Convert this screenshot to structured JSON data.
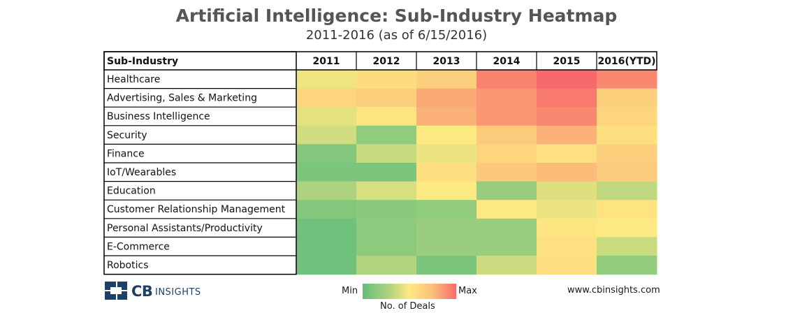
{
  "title": "Artificial Intelligence: Sub-Industry Heatmap",
  "subtitle": "2011-2016 (as of 6/15/2016)",
  "chart_data": {
    "type": "heatmap",
    "title": "Artificial Intelligence: Sub-Industry Heatmap",
    "row_header": "Sub-Industry",
    "columns": [
      "2011",
      "2012",
      "2013",
      "2014",
      "2015",
      "2016(YTD)"
    ],
    "rows": [
      "Healthcare",
      "Advertising, Sales & Marketing",
      "Business Intelligence",
      "Security",
      "Finance",
      "IoT/Wearables",
      "Education",
      "Customer Relationship Management",
      "Personal Assistants/Productivity",
      "E-Commerce",
      "Robotics"
    ],
    "values": [
      [
        0.45,
        0.55,
        0.6,
        0.9,
        1.0,
        0.88
      ],
      [
        0.58,
        0.6,
        0.75,
        0.82,
        0.93,
        0.6
      ],
      [
        0.42,
        0.52,
        0.72,
        0.82,
        0.88,
        0.58
      ],
      [
        0.35,
        0.15,
        0.5,
        0.62,
        0.72,
        0.54
      ],
      [
        0.1,
        0.32,
        0.44,
        0.58,
        0.53,
        0.6
      ],
      [
        0.08,
        0.08,
        0.54,
        0.63,
        0.68,
        0.62
      ],
      [
        0.24,
        0.38,
        0.5,
        0.17,
        0.4,
        0.3
      ],
      [
        0.1,
        0.13,
        0.15,
        0.5,
        0.44,
        0.52
      ],
      [
        0.04,
        0.14,
        0.18,
        0.18,
        0.51,
        0.5
      ],
      [
        0.04,
        0.14,
        0.18,
        0.18,
        0.53,
        0.33
      ],
      [
        0.04,
        0.25,
        0.08,
        0.34,
        0.54,
        0.16
      ]
    ],
    "value_scale": "relative (0 = Min, 1 = Max)",
    "legend": {
      "min_label": "Min",
      "max_label": "Max",
      "title": "No. of Deals"
    },
    "colors": {
      "min": "#63be7b",
      "mid": "#fde981",
      "max": "#f8696b"
    }
  },
  "footer": {
    "brand": "CB",
    "brand_sub": "INSIGHTS",
    "url": "www.cbinsights.com"
  }
}
